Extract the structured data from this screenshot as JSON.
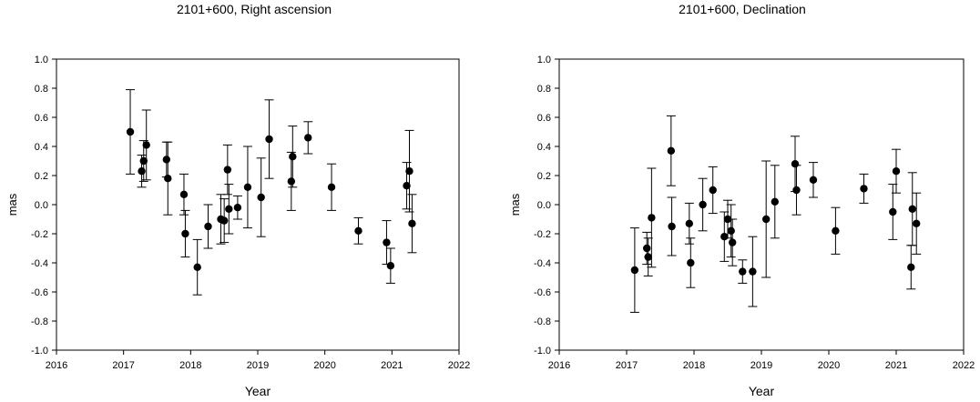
{
  "chart_data": [
    {
      "type": "scatter",
      "title": "2101+600, Right ascension",
      "xlabel": "Year",
      "ylabel": "mas",
      "xlim": [
        2016,
        2022
      ],
      "ylim": [
        -1.0,
        1.0
      ],
      "x_ticks": [
        "2016",
        "2017",
        "2018",
        "2019",
        "2020",
        "2021",
        "2022"
      ],
      "y_ticks": [
        "1.0",
        "0.8",
        "0.6",
        "0.4",
        "0.2",
        "0.0",
        "-0.2",
        "-0.4",
        "-0.6",
        "-0.8",
        "-1.0"
      ],
      "grid": false,
      "error_bars": true,
      "points": [
        {
          "x": 2017.1,
          "y": 0.5,
          "err": 0.29
        },
        {
          "x": 2017.27,
          "y": 0.23,
          "err": 0.11
        },
        {
          "x": 2017.3,
          "y": 0.3,
          "err": 0.14
        },
        {
          "x": 2017.34,
          "y": 0.41,
          "err": 0.24
        },
        {
          "x": 2017.64,
          "y": 0.31,
          "err": 0.12
        },
        {
          "x": 2017.66,
          "y": 0.18,
          "err": 0.25
        },
        {
          "x": 2017.9,
          "y": 0.07,
          "err": 0.14
        },
        {
          "x": 2017.92,
          "y": -0.2,
          "err": 0.16
        },
        {
          "x": 2018.1,
          "y": -0.43,
          "err": 0.19
        },
        {
          "x": 2018.26,
          "y": -0.15,
          "err": 0.15
        },
        {
          "x": 2018.45,
          "y": -0.1,
          "err": 0.17
        },
        {
          "x": 2018.5,
          "y": -0.11,
          "err": 0.15
        },
        {
          "x": 2018.55,
          "y": 0.24,
          "err": 0.17
        },
        {
          "x": 2018.57,
          "y": -0.03,
          "err": 0.17
        },
        {
          "x": 2018.7,
          "y": -0.02,
          "err": 0.08
        },
        {
          "x": 2018.85,
          "y": 0.12,
          "err": 0.28
        },
        {
          "x": 2019.05,
          "y": 0.05,
          "err": 0.27
        },
        {
          "x": 2019.17,
          "y": 0.45,
          "err": 0.27
        },
        {
          "x": 2019.5,
          "y": 0.16,
          "err": 0.2
        },
        {
          "x": 2019.52,
          "y": 0.33,
          "err": 0.21
        },
        {
          "x": 2019.75,
          "y": 0.46,
          "err": 0.11
        },
        {
          "x": 2020.1,
          "y": 0.12,
          "err": 0.16
        },
        {
          "x": 2020.5,
          "y": -0.18,
          "err": 0.09
        },
        {
          "x": 2020.92,
          "y": -0.26,
          "err": 0.15
        },
        {
          "x": 2020.98,
          "y": -0.42,
          "err": 0.12
        },
        {
          "x": 2021.22,
          "y": 0.13,
          "err": 0.16
        },
        {
          "x": 2021.26,
          "y": 0.23,
          "err": 0.28
        },
        {
          "x": 2021.3,
          "y": -0.13,
          "err": 0.2
        }
      ]
    },
    {
      "type": "scatter",
      "title": "2101+600, Declination",
      "xlabel": "Year",
      "ylabel": "mas",
      "xlim": [
        2016,
        2022
      ],
      "ylim": [
        -1.0,
        1.0
      ],
      "x_ticks": [
        "2016",
        "2017",
        "2018",
        "2019",
        "2020",
        "2021",
        "2022"
      ],
      "y_ticks": [
        "1.0",
        "0.8",
        "0.6",
        "0.4",
        "0.2",
        "0.0",
        "-0.2",
        "-0.4",
        "-0.6",
        "-0.8",
        "-1.0"
      ],
      "grid": false,
      "error_bars": true,
      "points": [
        {
          "x": 2017.12,
          "y": -0.45,
          "err": 0.29
        },
        {
          "x": 2017.3,
          "y": -0.3,
          "err": 0.11
        },
        {
          "x": 2017.32,
          "y": -0.36,
          "err": 0.13
        },
        {
          "x": 2017.37,
          "y": -0.09,
          "err": 0.34
        },
        {
          "x": 2017.66,
          "y": 0.37,
          "err": 0.24
        },
        {
          "x": 2017.67,
          "y": -0.15,
          "err": 0.2
        },
        {
          "x": 2017.93,
          "y": -0.13,
          "err": 0.14
        },
        {
          "x": 2017.95,
          "y": -0.4,
          "err": 0.17
        },
        {
          "x": 2018.13,
          "y": 0.0,
          "err": 0.18
        },
        {
          "x": 2018.28,
          "y": 0.1,
          "err": 0.16
        },
        {
          "x": 2018.45,
          "y": -0.22,
          "err": 0.17
        },
        {
          "x": 2018.5,
          "y": -0.1,
          "err": 0.13
        },
        {
          "x": 2018.55,
          "y": -0.18,
          "err": 0.18
        },
        {
          "x": 2018.57,
          "y": -0.26,
          "err": 0.16
        },
        {
          "x": 2018.72,
          "y": -0.46,
          "err": 0.08
        },
        {
          "x": 2018.87,
          "y": -0.46,
          "err": 0.24
        },
        {
          "x": 2019.07,
          "y": -0.1,
          "err": 0.4
        },
        {
          "x": 2019.2,
          "y": 0.02,
          "err": 0.25
        },
        {
          "x": 2019.5,
          "y": 0.28,
          "err": 0.19
        },
        {
          "x": 2019.52,
          "y": 0.1,
          "err": 0.17
        },
        {
          "x": 2019.77,
          "y": 0.17,
          "err": 0.12
        },
        {
          "x": 2020.1,
          "y": -0.18,
          "err": 0.16
        },
        {
          "x": 2020.52,
          "y": 0.11,
          "err": 0.1
        },
        {
          "x": 2020.95,
          "y": -0.05,
          "err": 0.19
        },
        {
          "x": 2021.0,
          "y": 0.23,
          "err": 0.15
        },
        {
          "x": 2021.22,
          "y": -0.43,
          "err": 0.15
        },
        {
          "x": 2021.24,
          "y": -0.03,
          "err": 0.25
        },
        {
          "x": 2021.3,
          "y": -0.13,
          "err": 0.21
        }
      ]
    }
  ]
}
